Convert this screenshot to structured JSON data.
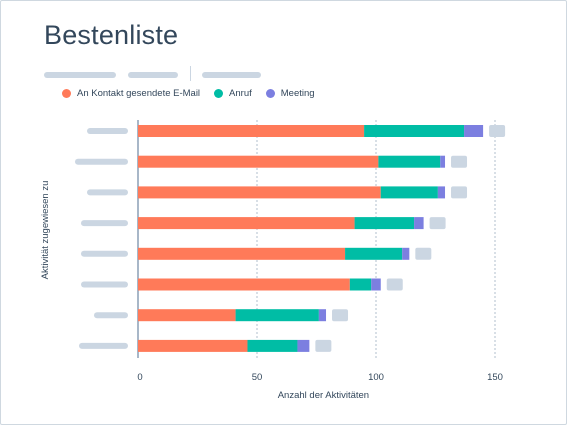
{
  "title": "Bestenliste",
  "chart_data": {
    "type": "bar",
    "orientation": "horizontal",
    "stacked": true,
    "xlabel": "Anzahl der Aktivitäten",
    "ylabel": "Aktivität zugewiesen zu",
    "xlim": [
      0,
      160
    ],
    "xticks": [
      0,
      50,
      100,
      150
    ],
    "grid": true,
    "legend_position": "top-left",
    "series": [
      {
        "name": "An Kontakt gesendete E-Mail",
        "color": "#ff7a59",
        "values": [
          95,
          101,
          102,
          91,
          87,
          89,
          41,
          46
        ]
      },
      {
        "name": "Anruf",
        "color": "#00bda5",
        "values": [
          42,
          26,
          24,
          25,
          24,
          9,
          35,
          21
        ]
      },
      {
        "name": "Meeting",
        "color": "#7c7fe0",
        "values": [
          8,
          2,
          3,
          4,
          3,
          4,
          3,
          5
        ]
      }
    ]
  }
}
